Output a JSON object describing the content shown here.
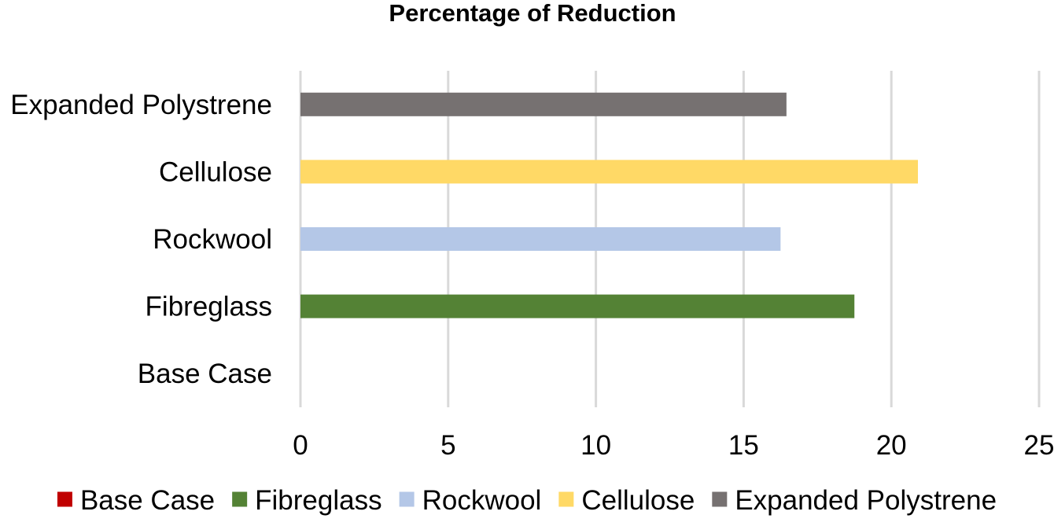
{
  "chart_data": {
    "type": "bar",
    "orientation": "horizontal",
    "title": "Percentage of Reduction",
    "xlabel": "",
    "ylabel": "",
    "categories": [
      "Base Case",
      "Fibreglass",
      "Rockwool",
      "Cellulose",
      "Expanded Polystrene"
    ],
    "values": [
      0,
      18.75,
      16.25,
      20.9,
      16.45
    ],
    "colors": [
      "#c00000",
      "#548235",
      "#b4c7e7",
      "#ffd966",
      "#767171"
    ],
    "xlim": [
      0,
      25
    ],
    "x_ticks": [
      "0",
      "5",
      "10",
      "15",
      "20",
      "25"
    ],
    "grid": true,
    "legend": {
      "position": "bottom",
      "entries": [
        "Base Case",
        "Fibreglass",
        "Rockwool",
        "Cellulose",
        "Expanded Polystrene"
      ]
    }
  }
}
